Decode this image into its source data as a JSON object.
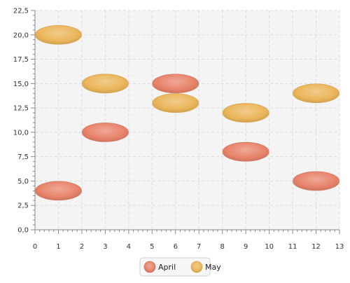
{
  "chart_data": {
    "type": "scatter",
    "title": "",
    "xlabel": "",
    "ylabel": "",
    "xlim": [
      0,
      13
    ],
    "ylim": [
      0,
      22.5
    ],
    "x_ticks": [
      0,
      1,
      2,
      3,
      4,
      5,
      6,
      7,
      8,
      9,
      10,
      11,
      12,
      13
    ],
    "x_tick_labels": [
      "0",
      "1",
      "2",
      "3",
      "4",
      "5",
      "6",
      "7",
      "8",
      "9",
      "10",
      "11",
      "12",
      "13"
    ],
    "y_ticks": [
      0,
      2.5,
      5,
      7.5,
      10,
      12.5,
      15,
      17.5,
      20,
      22.5
    ],
    "y_tick_labels": [
      "0,0",
      "2,5",
      "5,0",
      "7,5",
      "10,0",
      "12,5",
      "15,0",
      "17,5",
      "20,0",
      "22,5"
    ],
    "grid": true,
    "legend_position": "bottom-center",
    "series": [
      {
        "name": "April",
        "color": "#e8836a",
        "points": [
          {
            "x": 1,
            "y": 4
          },
          {
            "x": 3,
            "y": 10
          },
          {
            "x": 6,
            "y": 15
          },
          {
            "x": 9,
            "y": 8
          },
          {
            "x": 12,
            "y": 5
          }
        ]
      },
      {
        "name": "May",
        "color": "#ebb65a",
        "points": [
          {
            "x": 1,
            "y": 20
          },
          {
            "x": 3,
            "y": 15
          },
          {
            "x": 6,
            "y": 13
          },
          {
            "x": 9,
            "y": 12
          },
          {
            "x": 12,
            "y": 14
          }
        ]
      }
    ]
  }
}
